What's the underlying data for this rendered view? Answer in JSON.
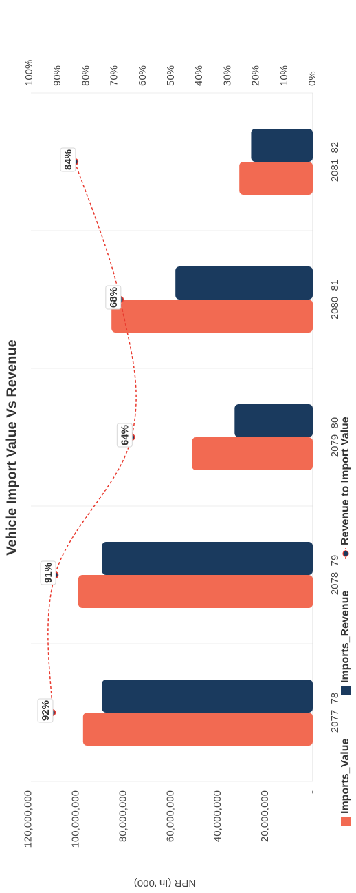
{
  "chart_data": {
    "type": "bar",
    "title": "Vehicle Import Value Vs Revenue",
    "ylabel": "NPR (In '000)",
    "categories": [
      "2077_78",
      "2078_79",
      "2079_80",
      "2080_81",
      "2081_82"
    ],
    "ylim": [
      0,
      120000000
    ],
    "y_ticks": [
      "-",
      "20,000,000",
      "40,000,000",
      "60,000,000",
      "80,000,000",
      "100,000,000",
      "120,000,000"
    ],
    "y2lim": [
      0,
      100
    ],
    "y2_ticks": [
      "0%",
      "10%",
      "20%",
      "30%",
      "40%",
      "50%",
      "60%",
      "70%",
      "80%",
      "90%",
      "100%"
    ],
    "series": [
      {
        "name": "Imports_Value",
        "type": "bar",
        "color": "#F26A52",
        "values": [
          97000000,
          99000000,
          51000000,
          85000000,
          31000000
        ]
      },
      {
        "name": "Imports_Revenue",
        "type": "bar",
        "color": "#1A3A5E",
        "values": [
          89000000,
          89000000,
          33000000,
          58000000,
          26000000
        ]
      },
      {
        "name": "Revenue to Import Value",
        "type": "line",
        "axis": "secondary",
        "color": "#E8392E",
        "values": [
          92,
          91,
          64,
          68,
          84
        ],
        "labels": [
          "92%",
          "91%",
          "64%",
          "68%",
          "84%"
        ]
      }
    ],
    "grid": true,
    "legend": "bottom"
  }
}
